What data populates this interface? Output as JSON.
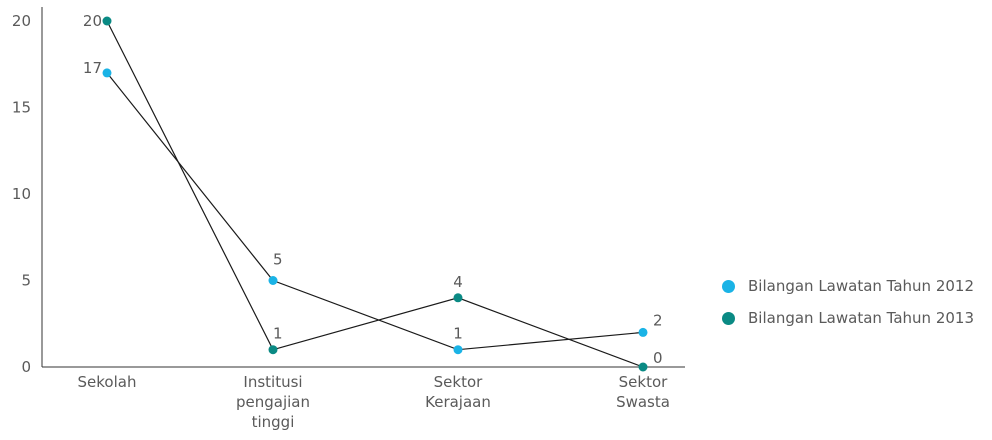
{
  "chart_data": {
    "type": "line",
    "categories": [
      [
        "Sekolah"
      ],
      [
        "Institusi",
        "pengajian",
        "tinggi"
      ],
      [
        "Sektor",
        "Kerajaan"
      ],
      [
        "Sektor",
        "Swasta"
      ]
    ],
    "series": [
      {
        "name": "Bilangan Lawatan Tahun 2012",
        "values": [
          17,
          5,
          1,
          2
        ],
        "color": "#1ab3e6"
      },
      {
        "name": "Bilangan Lawatan Tahun 2013",
        "values": [
          20,
          1,
          4,
          0
        ],
        "color": "#0a8a84"
      }
    ],
    "yticks": [
      "0",
      "5",
      "10",
      "15",
      "20"
    ],
    "ylim": [
      0,
      20
    ],
    "grid": false,
    "legend_position": "right",
    "line_color": "#1a1a1a"
  }
}
